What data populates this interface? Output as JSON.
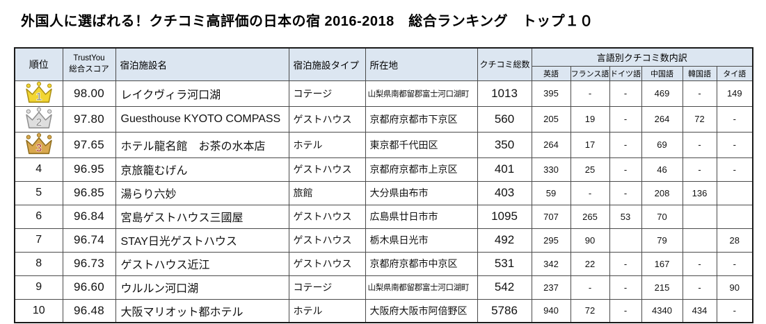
{
  "title": "外国人に選ばれる！クチコミ高評価の日本の宿 2016-2018　総合ランキング　トップ１０",
  "colors": {
    "header_bg": "#dce6f1",
    "border": "#4a4a4a",
    "outer_border": "#1a1a1a",
    "text": "#000000"
  },
  "table": {
    "headers": {
      "rank": "順位",
      "score_line1": "TrustYou",
      "score_line2": "総合スコア",
      "name": "宿泊施設名",
      "type": "宿泊施設タイプ",
      "location": "所在地",
      "total": "クチコミ総数",
      "lang_group": "言語別クチコミ数内訳"
    },
    "languages": [
      "英語",
      "フランス語",
      "ドイツ語",
      "中国語",
      "韓国語",
      "タイ語"
    ],
    "crown_colors": {
      "gold": {
        "fill": "#f2d633",
        "stroke": "#ab8f14",
        "num": "#8f8f82"
      },
      "silver": {
        "fill": "#dedede",
        "stroke": "#8f8f8f",
        "num": "#8c8c8c"
      },
      "bronze": {
        "fill": "#d9a84e",
        "stroke": "#8f6d1d",
        "num": "#b03a2e"
      }
    },
    "rows": [
      {
        "rank": "1",
        "crown": "gold",
        "score": "98.00",
        "name": "レイクヴィラ河口湖",
        "type": "コテージ",
        "location": "山梨県南都留郡富士河口湖町",
        "total": "1013",
        "langs": [
          "395",
          "-",
          "-",
          "469",
          "-",
          "149"
        ]
      },
      {
        "rank": "2",
        "crown": "silver",
        "score": "97.80",
        "name": "Guesthouse KYOTO COMPASS",
        "type": "ゲストハウス",
        "location": "京都府京都市下京区",
        "total": "560",
        "langs": [
          "205",
          "19",
          "-",
          "264",
          "72",
          "-"
        ]
      },
      {
        "rank": "3",
        "crown": "bronze",
        "score": "97.65",
        "name": "ホテル龍名館　お茶の水本店",
        "type": "ホテル",
        "location": "東京都千代田区",
        "total": "350",
        "langs": [
          "264",
          "17",
          "-",
          "69",
          "-",
          "-"
        ]
      },
      {
        "rank": "4",
        "crown": null,
        "score": "96.95",
        "name": "京旅籠むげん",
        "type": "ゲストハウス",
        "location": "京都府京都市上京区",
        "total": "401",
        "langs": [
          "330",
          "25",
          "-",
          "46",
          "-",
          "-"
        ]
      },
      {
        "rank": "5",
        "crown": null,
        "score": "96.85",
        "name": "湯らり六妙",
        "type": "旅館",
        "location": "大分県由布市",
        "total": "403",
        "langs": [
          "59",
          "-",
          "-",
          "208",
          "136",
          ""
        ]
      },
      {
        "rank": "6",
        "crown": null,
        "score": "96.84",
        "name": "宮島ゲストハウス三國屋",
        "type": "ゲストハウス",
        "location": "広島県廿日市市",
        "total": "1095",
        "langs": [
          "707",
          "265",
          "53",
          "70",
          "",
          ""
        ]
      },
      {
        "rank": "7",
        "crown": null,
        "score": "96.74",
        "name": "STAY日光ゲストハウス",
        "type": "ゲストハウス",
        "location": "栃木県日光市",
        "total": "492",
        "langs": [
          "295",
          "90",
          "",
          "79",
          "",
          "28"
        ]
      },
      {
        "rank": "8",
        "crown": null,
        "score": "96.73",
        "name": "ゲストハウス近江",
        "type": "ゲストハウス",
        "location": "京都府京都市中京区",
        "total": "531",
        "langs": [
          "342",
          "22",
          "-",
          "167",
          "-",
          "-"
        ]
      },
      {
        "rank": "9",
        "crown": null,
        "score": "96.60",
        "name": "ウルルン河口湖",
        "type": "コテージ",
        "location": "山梨県南都留郡富士河口湖町",
        "total": "542",
        "langs": [
          "237",
          "-",
          "-",
          "215",
          "-",
          "90"
        ]
      },
      {
        "rank": "10",
        "crown": null,
        "score": "96.48",
        "name": "大阪マリオット都ホテル",
        "type": "ホテル",
        "location": "大阪府大阪市阿倍野区",
        "total": "5786",
        "langs": [
          "940",
          "72",
          "-",
          "4340",
          "434",
          "-"
        ]
      }
    ]
  }
}
